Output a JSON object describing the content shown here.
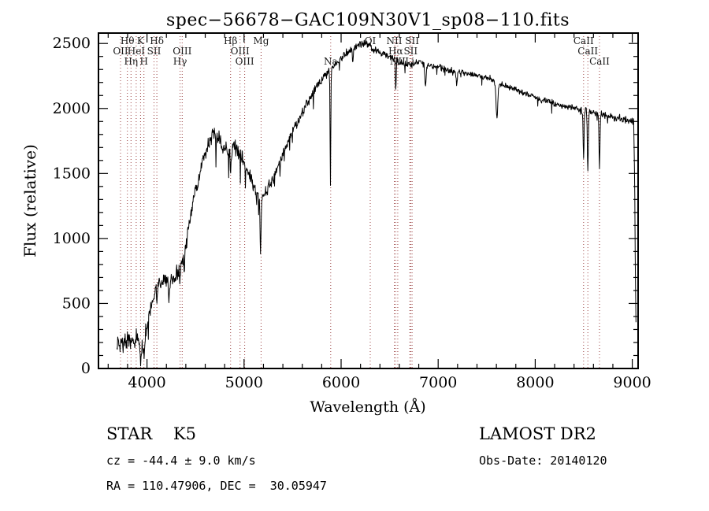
{
  "title": "spec−56678−GAC109N30V1_sp08−110.fits",
  "annotations": {
    "class_label": "STAR    K5",
    "survey": "LAMOST DR2",
    "cz": "cz = -44.4 ± 9.0 km/s",
    "obs_date": "Obs-Date: 20140120",
    "ra_dec": "RA = 110.47906, DEC =  30.05947"
  },
  "chart_data": {
    "type": "line",
    "title": "spec−56678−GAC109N30V1_sp08−110.fits",
    "xlabel": "Wavelength (Å)",
    "ylabel": "Flux (relative)",
    "xlim": [
      3500,
      9060
    ],
    "ylim": [
      0,
      2580
    ],
    "x_ticks": [
      4000,
      5000,
      6000,
      7000,
      8000,
      9000
    ],
    "y_ticks": [
      0,
      500,
      1000,
      1500,
      2000,
      2500
    ],
    "x_minor_step": 200,
    "y_minor_step": 100,
    "grid": false,
    "legend": "none",
    "line_color": "#000000",
    "marker_color": "#9b4040",
    "spectral_lines": [
      {
        "name": "Hθ",
        "wl": 3798.0,
        "row": 0
      },
      {
        "name": "K",
        "wl": 3933.7,
        "row": 0
      },
      {
        "name": "Hδ",
        "wl": 4101.7,
        "row": 0
      },
      {
        "name": "Hβ",
        "wl": 4861.3,
        "row": 0
      },
      {
        "name": "Mg",
        "wl": 5175.3,
        "row": 0
      },
      {
        "name": "OI",
        "wl": 6300.3,
        "row": 0
      },
      {
        "name": "NII",
        "wl": 6548.1,
        "row": 0
      },
      {
        "name": "SII",
        "wl": 6731.3,
        "row": 0
      },
      {
        "name": "CaII",
        "wl": 8498.0,
        "row": 0
      },
      {
        "name": "OII",
        "wl": 3727.1,
        "row": 1
      },
      {
        "name": "HeI",
        "wl": 3889.0,
        "row": 1
      },
      {
        "name": "SII",
        "wl": 4072.0,
        "row": 1
      },
      {
        "name": "OIII",
        "wl": 4363.2,
        "row": 1
      },
      {
        "name": "OIII",
        "wl": 4958.9,
        "row": 1
      },
      {
        "name": "Hα",
        "wl": 6562.8,
        "row": 1
      },
      {
        "name": "SII",
        "wl": 6716.4,
        "row": 1
      },
      {
        "name": "CaII",
        "wl": 8542.1,
        "row": 1
      },
      {
        "name": "Hη",
        "wl": 3835.4,
        "row": 2
      },
      {
        "name": "H",
        "wl": 3968.5,
        "row": 2
      },
      {
        "name": "Hγ",
        "wl": 4340.5,
        "row": 2
      },
      {
        "name": "OIII",
        "wl": 5006.8,
        "row": 2
      },
      {
        "name": "Na",
        "wl": 5892.9,
        "row": 2
      },
      {
        "name": "NII",
        "wl": 6583.4,
        "row": 2
      },
      {
        "name": "Li",
        "wl": 6707.8,
        "row": 2
      },
      {
        "name": "CaII",
        "wl": 8662.1,
        "row": 2
      }
    ],
    "continuum_anchors": [
      [
        3690,
        120
      ],
      [
        3705,
        230
      ],
      [
        3720,
        150
      ],
      [
        3735,
        260
      ],
      [
        3750,
        170
      ],
      [
        3770,
        240
      ],
      [
        3790,
        190
      ],
      [
        3810,
        250
      ],
      [
        3830,
        200
      ],
      [
        3850,
        230
      ],
      [
        3870,
        190
      ],
      [
        3890,
        240
      ],
      [
        3910,
        200
      ],
      [
        3935,
        190
      ],
      [
        3955,
        210
      ],
      [
        3975,
        240
      ],
      [
        4000,
        330
      ],
      [
        4030,
        430
      ],
      [
        4060,
        540
      ],
      [
        4090,
        620
      ],
      [
        4120,
        650
      ],
      [
        4150,
        660
      ],
      [
        4180,
        700
      ],
      [
        4210,
        690
      ],
      [
        4240,
        660
      ],
      [
        4270,
        700
      ],
      [
        4300,
        730
      ],
      [
        4330,
        760
      ],
      [
        4360,
        820
      ],
      [
        4400,
        950
      ],
      [
        4440,
        1120
      ],
      [
        4480,
        1300
      ],
      [
        4520,
        1430
      ],
      [
        4560,
        1550
      ],
      [
        4600,
        1670
      ],
      [
        4640,
        1760
      ],
      [
        4680,
        1810
      ],
      [
        4720,
        1780
      ],
      [
        4760,
        1730
      ],
      [
        4800,
        1700
      ],
      [
        4840,
        1670
      ],
      [
        4880,
        1720
      ],
      [
        4920,
        1680
      ],
      [
        4960,
        1640
      ],
      [
        5000,
        1590
      ],
      [
        5040,
        1500
      ],
      [
        5080,
        1440
      ],
      [
        5120,
        1370
      ],
      [
        5160,
        1330
      ],
      [
        5200,
        1330
      ],
      [
        5240,
        1380
      ],
      [
        5280,
        1430
      ],
      [
        5330,
        1520
      ],
      [
        5400,
        1650
      ],
      [
        5470,
        1770
      ],
      [
        5540,
        1880
      ],
      [
        5610,
        1980
      ],
      [
        5680,
        2080
      ],
      [
        5750,
        2170
      ],
      [
        5820,
        2240
      ],
      [
        5890,
        2300
      ],
      [
        5960,
        2360
      ],
      [
        6030,
        2410
      ],
      [
        6100,
        2450
      ],
      [
        6170,
        2490
      ],
      [
        6240,
        2500
      ],
      [
        6310,
        2470
      ],
      [
        6380,
        2440
      ],
      [
        6450,
        2410
      ],
      [
        6520,
        2390
      ],
      [
        6590,
        2360
      ],
      [
        6660,
        2340
      ],
      [
        6730,
        2340
      ],
      [
        6800,
        2360
      ],
      [
        6870,
        2330
      ],
      [
        6940,
        2330
      ],
      [
        7010,
        2320
      ],
      [
        7080,
        2300
      ],
      [
        7150,
        2290
      ],
      [
        7220,
        2280
      ],
      [
        7290,
        2270
      ],
      [
        7360,
        2260
      ],
      [
        7430,
        2250
      ],
      [
        7500,
        2240
      ],
      [
        7570,
        2220
      ],
      [
        7640,
        2190
      ],
      [
        7710,
        2170
      ],
      [
        7780,
        2150
      ],
      [
        7850,
        2130
      ],
      [
        7920,
        2110
      ],
      [
        7990,
        2090
      ],
      [
        8060,
        2070
      ],
      [
        8130,
        2060
      ],
      [
        8200,
        2040
      ],
      [
        8270,
        2020
      ],
      [
        8340,
        2010
      ],
      [
        8410,
        2000
      ],
      [
        8480,
        1990
      ],
      [
        8550,
        1975
      ],
      [
        8620,
        1965
      ],
      [
        8690,
        1950
      ],
      [
        8760,
        1940
      ],
      [
        8830,
        1930
      ],
      [
        8900,
        1920
      ],
      [
        8960,
        1910
      ],
      [
        9000,
        1905
      ],
      [
        9015,
        1900
      ],
      [
        9025,
        1400
      ],
      [
        9032,
        700
      ],
      [
        9038,
        320
      ]
    ],
    "absorption_lines": [
      {
        "wl": 3933.7,
        "sigma": 6,
        "depth": 130
      },
      {
        "wl": 3968.5,
        "sigma": 6,
        "depth": 130
      },
      {
        "wl": 4101.7,
        "sigma": 5,
        "depth": 110
      },
      {
        "wl": 4226.7,
        "sigma": 5,
        "depth": 170
      },
      {
        "wl": 4340.5,
        "sigma": 5,
        "depth": 130
      },
      {
        "wl": 4383.5,
        "sigma": 5,
        "depth": 140
      },
      {
        "wl": 4861.3,
        "sigma": 5,
        "depth": 210
      },
      {
        "wl": 5170.0,
        "sigma": 6,
        "depth": 430
      },
      {
        "wl": 5890.0,
        "sigma": 4,
        "depth": 870
      },
      {
        "wl": 6122.0,
        "sigma": 4,
        "depth": 120
      },
      {
        "wl": 6563.0,
        "sigma": 4,
        "depth": 250
      },
      {
        "wl": 6870.0,
        "sigma": 7,
        "depth": 150
      },
      {
        "wl": 7190.0,
        "sigma": 7,
        "depth": 90
      },
      {
        "wl": 7605.0,
        "sigma": 9,
        "depth": 270
      },
      {
        "wl": 8498.0,
        "sigma": 5,
        "depth": 370
      },
      {
        "wl": 8542.1,
        "sigma": 5,
        "depth": 460
      },
      {
        "wl": 8662.1,
        "sigma": 5,
        "depth": 410
      }
    ],
    "noise_profile": {
      "seed": 20140120,
      "spike_prob": 0.05,
      "spike_scale": 2.6,
      "anchors": [
        [
          3690,
          85
        ],
        [
          3900,
          75
        ],
        [
          4100,
          65
        ],
        [
          4400,
          70
        ],
        [
          4700,
          85
        ],
        [
          5000,
          75
        ],
        [
          5200,
          55
        ],
        [
          5500,
          45
        ],
        [
          5800,
          40
        ],
        [
          6100,
          38
        ],
        [
          6400,
          34
        ],
        [
          6700,
          30
        ],
        [
          7000,
          27
        ],
        [
          7300,
          28
        ],
        [
          7600,
          30
        ],
        [
          7900,
          29
        ],
        [
          8200,
          31
        ],
        [
          8500,
          33
        ],
        [
          8800,
          36
        ],
        [
          9038,
          40
        ]
      ]
    }
  }
}
